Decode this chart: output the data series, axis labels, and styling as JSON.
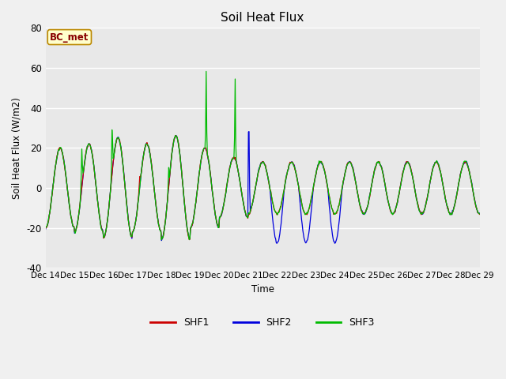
{
  "title": "Soil Heat Flux",
  "ylabel": "Soil Heat Flux (W/m2)",
  "xlabel": "Time",
  "ylim": [
    -40,
    80
  ],
  "background_color": "#f0f0f0",
  "plot_bg_color": "#e8e8e8",
  "annotation_text": "BC_met",
  "annotation_bg": "#ffffcc",
  "annotation_border": "#bb8800",
  "grid_color": "#ffffff",
  "line_colors": {
    "SHF1": "#cc0000",
    "SHF2": "#0000dd",
    "SHF3": "#00bb00"
  },
  "xtick_labels": [
    "Dec 14",
    "Dec 15",
    "Dec 16",
    "Dec 17",
    "Dec 18",
    "Dec 19",
    "Dec 20",
    "Dec 21",
    "Dec 22",
    "Dec 23",
    "Dec 24",
    "Dec 25",
    "Dec 26",
    "Dec 27",
    "Dec 28",
    "Dec 29"
  ],
  "ytick_values": [
    -40,
    -20,
    0,
    20,
    40,
    60,
    80
  ],
  "n_days": 15,
  "pts_per_day": 48
}
